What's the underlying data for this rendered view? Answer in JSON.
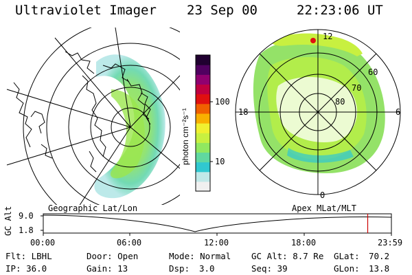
{
  "header": {
    "instrument": "Ultraviolet Imager",
    "date": "23 Sep 00",
    "time": "22:23:06 UT"
  },
  "left_panel": {
    "caption": "Geographic Lat/Lon"
  },
  "right_panel": {
    "caption": "Apex MLat/MLT",
    "mlat_labels": [
      "60",
      "70",
      "80"
    ],
    "mlt_labels": {
      "top": "12",
      "left": "18",
      "right": "6",
      "bottom": "0"
    }
  },
  "colorbar": {
    "unit_label": "photon cm⁻²s⁻¹",
    "tick_labels": [
      "100",
      "10"
    ],
    "colors": [
      "#f0f0f0",
      "#c0e8e8",
      "#30c8d0",
      "#60d8a0",
      "#90e860",
      "#c8f040",
      "#f0f030",
      "#f8b000",
      "#f06000",
      "#e01010",
      "#c00040",
      "#900070",
      "#500060",
      "#200030"
    ]
  },
  "timeline": {
    "y_axis_title": "GC Alt",
    "y_ticks": [
      "9.0",
      "1.8"
    ],
    "x_ticks": [
      "00:00",
      "06:00",
      "12:00",
      "18:00",
      "23:59"
    ],
    "cursor_color": "#cc0000",
    "cursor_fraction": 0.932
  },
  "footer": {
    "row1": {
      "flt": "Flt: LBHL",
      "door": "Door: Open",
      "mode": "Mode: Normal",
      "gcalt": "GC Alt: 8.7 Re",
      "glat": "GLat:",
      "glat_val": "70.2"
    },
    "row2": {
      "ip": "IP: 36.0",
      "gain": "Gain: 13",
      "dsp": "Dsp:",
      "dsp_val": "3.0",
      "seq": "Seq: 39",
      "glon": "GLon:",
      "glon_val": "13.8"
    }
  }
}
